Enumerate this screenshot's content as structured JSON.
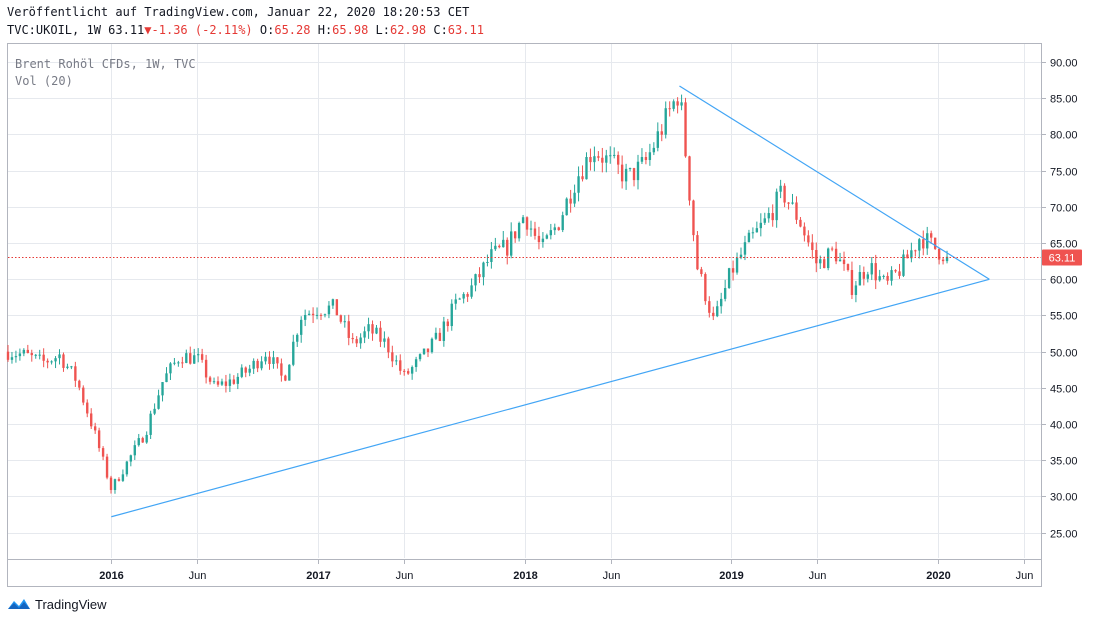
{
  "header": {
    "published": "Veröffentlicht auf TradingView.com, Januar 22, 2020 18:20:53 CET",
    "symbol": "TVC:UKOIL, 1W 63.11",
    "change_arrow": "▼",
    "change": "-1.36 (-2.11%)",
    "o_label": "O:",
    "o_value": "65.28",
    "h_label": "H:",
    "h_value": "65.98",
    "l_label": "L:",
    "l_value": "62.98",
    "c_label": "C:",
    "c_value": "63.11"
  },
  "legend": {
    "series": "Brent Rohöl CFDs, 1W, TVC",
    "volume": "Vol (20)"
  },
  "branding": {
    "name": "TradingView"
  },
  "colors": {
    "up": "#26a69a",
    "down": "#ef5350",
    "line": "#42a5f5",
    "price_tag": "#ef5350",
    "grid": "#e6e9ee"
  },
  "chart_data": {
    "type": "candlestick",
    "interval": "1W",
    "y_ticks": [
      "25.00",
      "30.00",
      "35.00",
      "40.00",
      "45.00",
      "50.00",
      "55.00",
      "60.00",
      "65.00",
      "70.00",
      "75.00",
      "80.00",
      "85.00",
      "90.00"
    ],
    "ylim": [
      21.5,
      92.5
    ],
    "x_ticks": [
      {
        "label": "2016",
        "date": "2016-01"
      },
      {
        "label": "Jun",
        "date": "2016-06"
      },
      {
        "label": "2017",
        "date": "2017-01"
      },
      {
        "label": "Jun",
        "date": "2017-06"
      },
      {
        "label": "2018",
        "date": "2018-01"
      },
      {
        "label": "Jun",
        "date": "2018-06"
      },
      {
        "label": "2019",
        "date": "2019-01"
      },
      {
        "label": "Jun",
        "date": "2019-06"
      },
      {
        "label": "2020",
        "date": "2020-01"
      },
      {
        "label": "Jun",
        "date": "2020-06"
      }
    ],
    "xlim": [
      "2015-07",
      "2020-07"
    ],
    "last_price": 63.11,
    "last_price_label": "63.11",
    "trend_lines": [
      {
        "from": {
          "date": "2016-01",
          "value": 27.2
        },
        "to": {
          "date": "2020-04",
          "value": 60.0
        }
      },
      {
        "from": {
          "date": "2018-10",
          "value": 86.7
        },
        "to": {
          "date": "2020-04",
          "value": 60.0
        }
      }
    ],
    "close_path": [
      {
        "date": "2015-07",
        "value": 50.0
      },
      {
        "date": "2015-08",
        "value": 49.5
      },
      {
        "date": "2015-09",
        "value": 48.5
      },
      {
        "date": "2015-10",
        "value": 49.5
      },
      {
        "date": "2015-11",
        "value": 46.0
      },
      {
        "date": "2015-12",
        "value": 39.0
      },
      {
        "date": "2016-01",
        "value": 31.0
      },
      {
        "date": "2016-02",
        "value": 35.0
      },
      {
        "date": "2016-03",
        "value": 39.0
      },
      {
        "date": "2016-04",
        "value": 46.0
      },
      {
        "date": "2016-05",
        "value": 49.5
      },
      {
        "date": "2016-06",
        "value": 49.0
      },
      {
        "date": "2016-07",
        "value": 45.0
      },
      {
        "date": "2016-08",
        "value": 46.0
      },
      {
        "date": "2016-09",
        "value": 47.5
      },
      {
        "date": "2016-10",
        "value": 50.0
      },
      {
        "date": "2016-11",
        "value": 46.0
      },
      {
        "date": "2016-12",
        "value": 55.0
      },
      {
        "date": "2017-01",
        "value": 56.0
      },
      {
        "date": "2017-02",
        "value": 56.0
      },
      {
        "date": "2017-03",
        "value": 51.0
      },
      {
        "date": "2017-04",
        "value": 53.0
      },
      {
        "date": "2017-05",
        "value": 51.0
      },
      {
        "date": "2017-06",
        "value": 46.5
      },
      {
        "date": "2017-07",
        "value": 49.0
      },
      {
        "date": "2017-08",
        "value": 52.0
      },
      {
        "date": "2017-09",
        "value": 56.5
      },
      {
        "date": "2017-10",
        "value": 59.0
      },
      {
        "date": "2017-11",
        "value": 63.0
      },
      {
        "date": "2017-12",
        "value": 64.5
      },
      {
        "date": "2018-01",
        "value": 69.0
      },
      {
        "date": "2018-02",
        "value": 64.0
      },
      {
        "date": "2018-03",
        "value": 68.0
      },
      {
        "date": "2018-04",
        "value": 74.0
      },
      {
        "date": "2018-05",
        "value": 78.0
      },
      {
        "date": "2018-06",
        "value": 76.0
      },
      {
        "date": "2018-07",
        "value": 74.0
      },
      {
        "date": "2018-08",
        "value": 76.0
      },
      {
        "date": "2018-09",
        "value": 81.0
      },
      {
        "date": "2018-10",
        "value": 86.0
      },
      {
        "date": "2018-11",
        "value": 62.0
      },
      {
        "date": "2018-12",
        "value": 54.0
      },
      {
        "date": "2019-01",
        "value": 61.0
      },
      {
        "date": "2019-02",
        "value": 65.0
      },
      {
        "date": "2019-03",
        "value": 68.0
      },
      {
        "date": "2019-04",
        "value": 72.0
      },
      {
        "date": "2019-05",
        "value": 68.0
      },
      {
        "date": "2019-06",
        "value": 62.0
      },
      {
        "date": "2019-07",
        "value": 64.0
      },
      {
        "date": "2019-08",
        "value": 59.0
      },
      {
        "date": "2019-09",
        "value": 62.0
      },
      {
        "date": "2019-10",
        "value": 59.0
      },
      {
        "date": "2019-11",
        "value": 62.0
      },
      {
        "date": "2019-12",
        "value": 66.0
      },
      {
        "date": "2020-01",
        "value": 64.0
      },
      {
        "date": "2020-01-22",
        "value": 63.11
      }
    ]
  }
}
